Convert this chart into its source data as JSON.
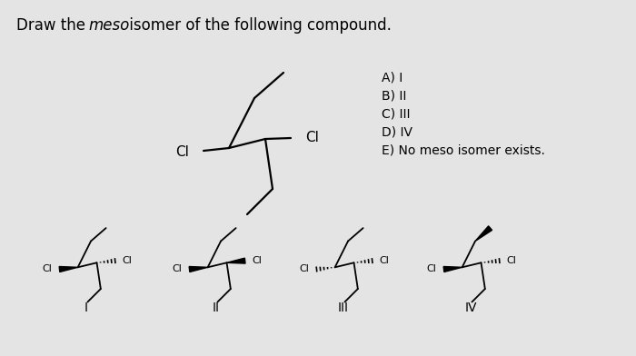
{
  "bg_color": "#e4e4e4",
  "text_color": "#000000",
  "line_color": "#000000",
  "options": [
    "A) I",
    "B) II",
    "C) III",
    "D) IV",
    "E) No meso isomer exists."
  ],
  "font_size_title": 12,
  "font_size_label": 10,
  "font_size_cl_main": 11,
  "font_size_cl_small": 8,
  "font_size_option": 10
}
